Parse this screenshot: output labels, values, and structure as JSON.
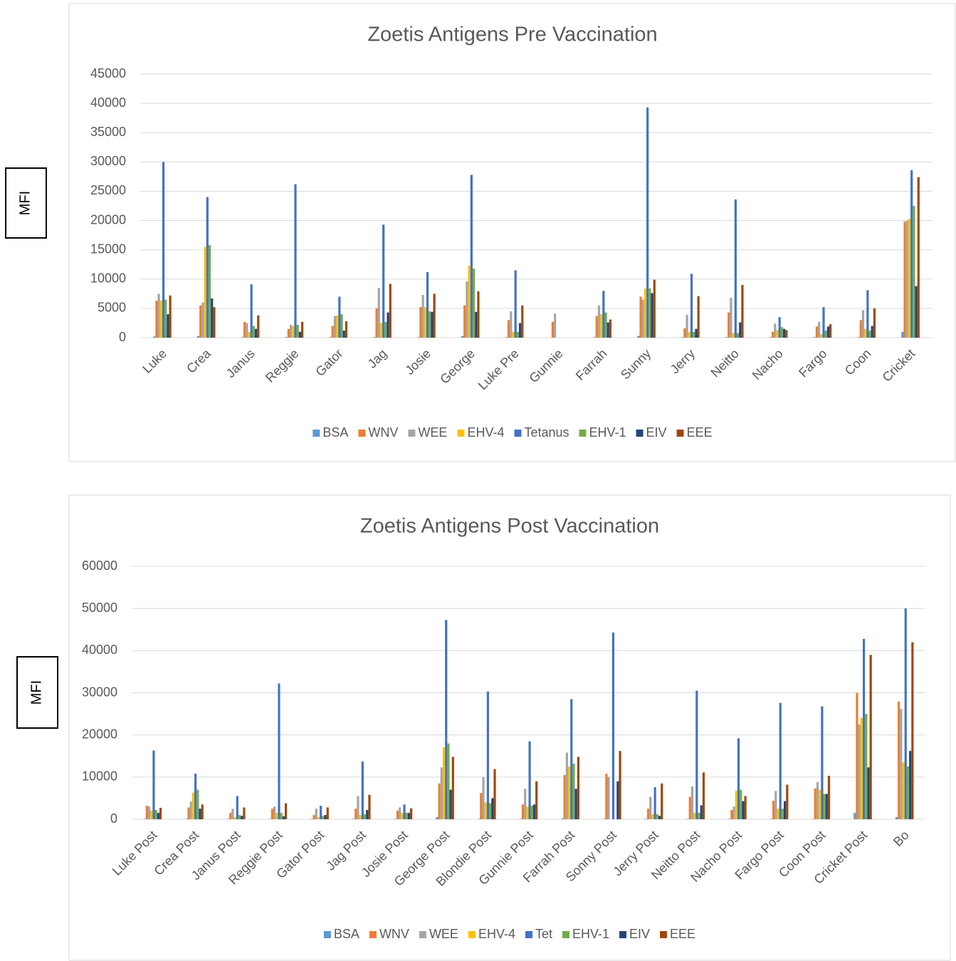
{
  "chart_data": [
    {
      "type": "bar",
      "title": "Zoetis Antigens Pre Vaccination",
      "y_label": "MFI",
      "categories": [
        "Luke",
        "Crea",
        "Janus",
        "Reggie",
        "Gator",
        "Jag",
        "Josie",
        "George",
        "Luke Pre",
        "Gunnie",
        "Farrah",
        "Sunny",
        "Jerry",
        "Neitto",
        "Nacho",
        "Fargo",
        "Coon",
        "Cricket"
      ],
      "series": [
        {
          "name": "BSA",
          "color": "#5b9bd5",
          "values": [
            200,
            300,
            100,
            100,
            100,
            100,
            100,
            300,
            100,
            0,
            100,
            300,
            100,
            100,
            100,
            100,
            100,
            1000
          ]
        },
        {
          "name": "WNV",
          "color": "#ed7d31",
          "values": [
            6300,
            5500,
            2700,
            1500,
            2000,
            5000,
            5200,
            5500,
            3000,
            2700,
            3700,
            7000,
            1600,
            4300,
            1000,
            1900,
            3000,
            19800
          ]
        },
        {
          "name": "WEE",
          "color": "#a5a5a5",
          "values": [
            7500,
            6000,
            2500,
            2200,
            3700,
            8500,
            7300,
            9600,
            4500,
            4100,
            5500,
            6500,
            3900,
            6800,
            2400,
            2700,
            4700,
            20000
          ]
        },
        {
          "name": "EHV-4",
          "color": "#ffc000",
          "values": [
            6300,
            15500,
            1000,
            2000,
            3800,
            2500,
            5200,
            12300,
            1000,
            0,
            4000,
            8400,
            1000,
            800,
            1300,
            600,
            1500,
            20300
          ]
        },
        {
          "name": "Tetanus",
          "color": "#4472c4",
          "values": [
            30000,
            24000,
            9100,
            26200,
            7000,
            19300,
            11200,
            27800,
            11500,
            0,
            8000,
            39300,
            10900,
            23600,
            3500,
            5200,
            8100,
            28600
          ]
        },
        {
          "name": "EHV-1",
          "color": "#70ad47",
          "values": [
            6500,
            15800,
            2000,
            2200,
            4000,
            2700,
            4500,
            11800,
            1000,
            0,
            4300,
            8400,
            1000,
            800,
            1800,
            1200,
            1200,
            22500
          ]
        },
        {
          "name": "EIV",
          "color": "#264478",
          "values": [
            4000,
            6700,
            1500,
            1000,
            1200,
            4300,
            4400,
            4400,
            2500,
            0,
            2600,
            7600,
            1500,
            2600,
            1500,
            1900,
            2000,
            8800
          ]
        },
        {
          "name": "EEE",
          "color": "#9e480e",
          "values": [
            7200,
            5200,
            3800,
            2700,
            2800,
            9200,
            7500,
            7900,
            5500,
            0,
            3100,
            9900,
            7100,
            9000,
            1300,
            2300,
            5000,
            27400
          ]
        }
      ],
      "ylim": [
        0,
        45000
      ],
      "yticks": [
        0,
        5000,
        10000,
        15000,
        20000,
        25000,
        30000,
        35000,
        40000,
        45000
      ],
      "grid": true,
      "legend": "bottom"
    },
    {
      "type": "bar",
      "title": "Zoetis Antigens Post Vaccination",
      "y_label": "MFI",
      "categories": [
        "Luke Post",
        "Crea Post",
        "Janus Post",
        "Reggie Post",
        "Gator Post",
        "Jag Post",
        "Josie Post",
        "George Post",
        "Blondie Post",
        "Gunnie Post",
        "Farrah Post",
        "Sonny Post",
        "Jerry Post",
        "Neitto Post",
        "Nacho Post",
        "Fargo Post",
        "Coon Post",
        "Cricket Post",
        "Bo"
      ],
      "series": [
        {
          "name": "BSA",
          "color": "#5b9bd5",
          "values": [
            100,
            100,
            100,
            100,
            100,
            100,
            100,
            500,
            100,
            100,
            200,
            100,
            100,
            100,
            100,
            100,
            100,
            1500,
            500
          ]
        },
        {
          "name": "WNV",
          "color": "#ed7d31",
          "values": [
            3200,
            2800,
            1500,
            2500,
            1000,
            2500,
            2000,
            8500,
            6200,
            3500,
            10500,
            10800,
            2500,
            5300,
            2200,
            4400,
            7300,
            30000,
            27900
          ]
        },
        {
          "name": "WEE",
          "color": "#a5a5a5",
          "values": [
            3000,
            4200,
            2500,
            3000,
            2500,
            5500,
            2800,
            12300,
            10000,
            7200,
            15800,
            10000,
            5300,
            7800,
            3000,
            6700,
            8800,
            22500,
            26200
          ]
        },
        {
          "name": "EHV-4",
          "color": "#ffc000",
          "values": [
            2000,
            6300,
            500,
            1500,
            500,
            1000,
            1500,
            17100,
            4000,
            3000,
            12500,
            0,
            1200,
            1500,
            6800,
            2500,
            7000,
            24000,
            13500
          ]
        },
        {
          "name": "Tet",
          "color": "#4472c4",
          "values": [
            16300,
            10800,
            5500,
            32200,
            3200,
            13700,
            3500,
            47300,
            30300,
            18500,
            28500,
            44300,
            7600,
            30500,
            19200,
            27600,
            26800,
            42800,
            50000
          ]
        },
        {
          "name": "EHV-1",
          "color": "#70ad47",
          "values": [
            2200,
            7000,
            1000,
            1500,
            800,
            1200,
            1500,
            18000,
            3800,
            3200,
            13200,
            0,
            1200,
            1500,
            7000,
            2500,
            6000,
            25000,
            12500
          ]
        },
        {
          "name": "EIV",
          "color": "#264478",
          "values": [
            1500,
            2500,
            800,
            700,
            1000,
            2200,
            1500,
            7000,
            5000,
            3500,
            7200,
            9000,
            800,
            3300,
            4300,
            4300,
            6000,
            12300,
            16200
          ]
        },
        {
          "name": "EEE",
          "color": "#9e480e",
          "values": [
            2700,
            3500,
            2800,
            3800,
            2800,
            5800,
            2600,
            14800,
            11900,
            9000,
            14800,
            16200,
            8500,
            11100,
            5500,
            8200,
            10300,
            39000,
            42000
          ]
        }
      ],
      "ylim": [
        0,
        60000
      ],
      "yticks": [
        0,
        10000,
        20000,
        30000,
        40000,
        50000,
        60000
      ],
      "grid": true,
      "legend": "bottom"
    }
  ]
}
